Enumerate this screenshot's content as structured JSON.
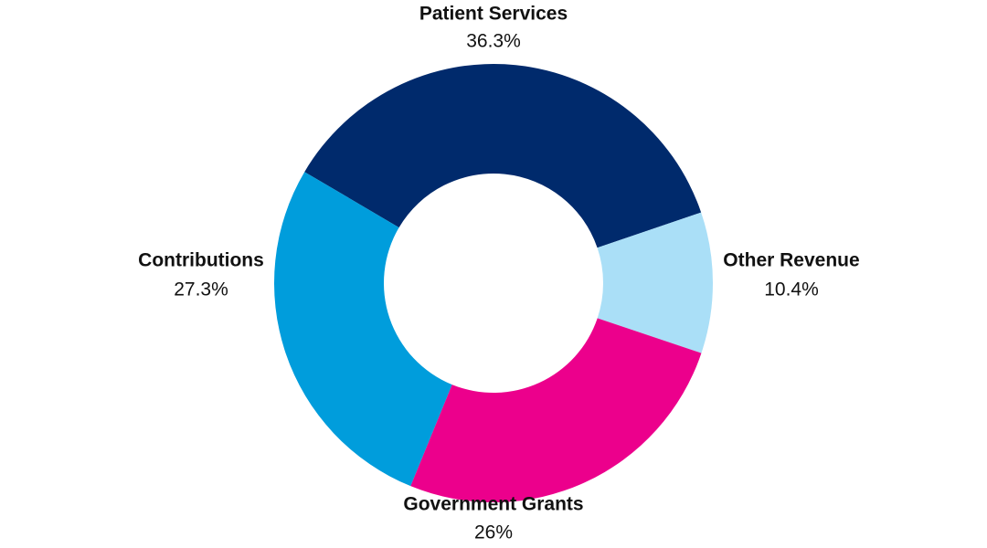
{
  "chart_data": {
    "type": "donut",
    "categories": [
      "Patient Services",
      "Other Revenue",
      "Government Grants",
      "Contributions"
    ],
    "values": [
      36.3,
      10.4,
      26,
      27.3
    ],
    "value_labels": [
      "36.3%",
      "10.4%",
      "26%",
      "27.3%"
    ],
    "colors": [
      "#002a6c",
      "#aadff7",
      "#ec008c",
      "#009ddc"
    ]
  }
}
